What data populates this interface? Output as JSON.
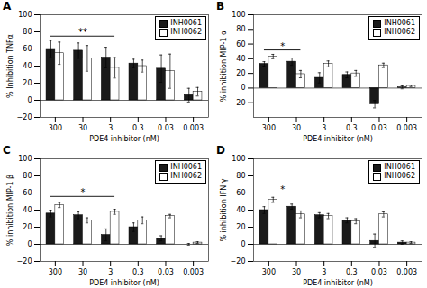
{
  "chart_data": [
    {
      "type": "bar",
      "title": "A",
      "xlabel": "PDE4 inhibitor (nM)",
      "ylabel": "% Inhibition TNFα",
      "categories": [
        "300",
        "30",
        "3",
        "0.3",
        "0.03",
        "0.003"
      ],
      "series": [
        {
          "name": "INH0061",
          "color": "#1a1a1a",
          "values": [
            60,
            58,
            50,
            43,
            37,
            6
          ],
          "errors": [
            10,
            9,
            12,
            5,
            16,
            8
          ]
        },
        {
          "name": "INH0062",
          "color": "#ffffff",
          "values": [
            55,
            49,
            38,
            40,
            34,
            10
          ],
          "errors": [
            13,
            15,
            12,
            7,
            20,
            5
          ]
        }
      ],
      "ylim": [
        -20,
        100
      ],
      "yticks": [
        -20,
        0,
        20,
        40,
        60,
        80,
        100
      ],
      "annotations": [
        {
          "text": "**",
          "x1": "300",
          "x2": "3",
          "y": 75
        }
      ],
      "legend": "upper right",
      "grid": false
    },
    {
      "type": "bar",
      "title": "B",
      "xlabel": "PDE4 inhibitor (nM)",
      "ylabel": "% inhibition MIP-1 α",
      "categories": [
        "300",
        "30",
        "3",
        "0.3",
        "0.03",
        "0.003"
      ],
      "series": [
        {
          "name": "INH0061",
          "color": "#1a1a1a",
          "values": [
            33,
            36,
            14,
            18,
            -22,
            1
          ],
          "errors": [
            3,
            5,
            7,
            4,
            5,
            2
          ]
        },
        {
          "name": "INH0062",
          "color": "#ffffff",
          "values": [
            43,
            19,
            33,
            20,
            31,
            3
          ],
          "errors": [
            3,
            5,
            4,
            4,
            3,
            1
          ]
        }
      ],
      "ylim": [
        -40,
        100
      ],
      "yticks": [
        -20,
        0,
        20,
        40,
        60,
        80,
        100
      ],
      "annotations": [
        {
          "text": "*",
          "x1": "300",
          "x2": "30",
          "y": 52
        }
      ],
      "legend": "upper right",
      "grid": false
    },
    {
      "type": "bar",
      "title": "C",
      "xlabel": "PDE4 inhibitor (nM)",
      "ylabel": "% inhibition MIP-1 β",
      "categories": [
        "300",
        "30",
        "3",
        "0.3",
        "0.03",
        "0.003"
      ],
      "series": [
        {
          "name": "INH0061",
          "color": "#1a1a1a",
          "values": [
            36,
            34,
            11,
            20,
            7,
            0
          ],
          "errors": [
            4,
            4,
            7,
            5,
            3,
            1
          ]
        },
        {
          "name": "INH0062",
          "color": "#ffffff",
          "values": [
            46,
            28,
            38,
            28,
            33,
            2
          ],
          "errors": [
            3,
            3,
            3,
            4,
            2,
            1
          ]
        }
      ],
      "ylim": [
        -20,
        100
      ],
      "yticks": [
        -20,
        0,
        20,
        40,
        60,
        80,
        100
      ],
      "annotations": [
        {
          "text": "*",
          "x1": "300",
          "x2": "3",
          "y": 56
        }
      ],
      "legend": "upper right",
      "grid": false
    },
    {
      "type": "bar",
      "title": "D",
      "xlabel": "PDE4 inhibitor (nM)",
      "ylabel": "% inhibition IFN γ",
      "categories": [
        "300",
        "30",
        "3",
        "0.3",
        "0.03",
        "0.003"
      ],
      "series": [
        {
          "name": "INH0061",
          "color": "#1a1a1a",
          "values": [
            40,
            44,
            34,
            28,
            4,
            2
          ],
          "errors": [
            4,
            3,
            3,
            3,
            8,
            2
          ]
        },
        {
          "name": "INH0062",
          "color": "#ffffff",
          "values": [
            52,
            35,
            33,
            27,
            35,
            2
          ],
          "errors": [
            3,
            4,
            3,
            3,
            3,
            1
          ]
        }
      ],
      "ylim": [
        -20,
        100
      ],
      "yticks": [
        -20,
        0,
        20,
        40,
        60,
        80,
        100
      ],
      "annotations": [
        {
          "text": "*",
          "x1": "300",
          "x2": "30",
          "y": 60
        }
      ],
      "legend": "upper right",
      "grid": false
    }
  ]
}
